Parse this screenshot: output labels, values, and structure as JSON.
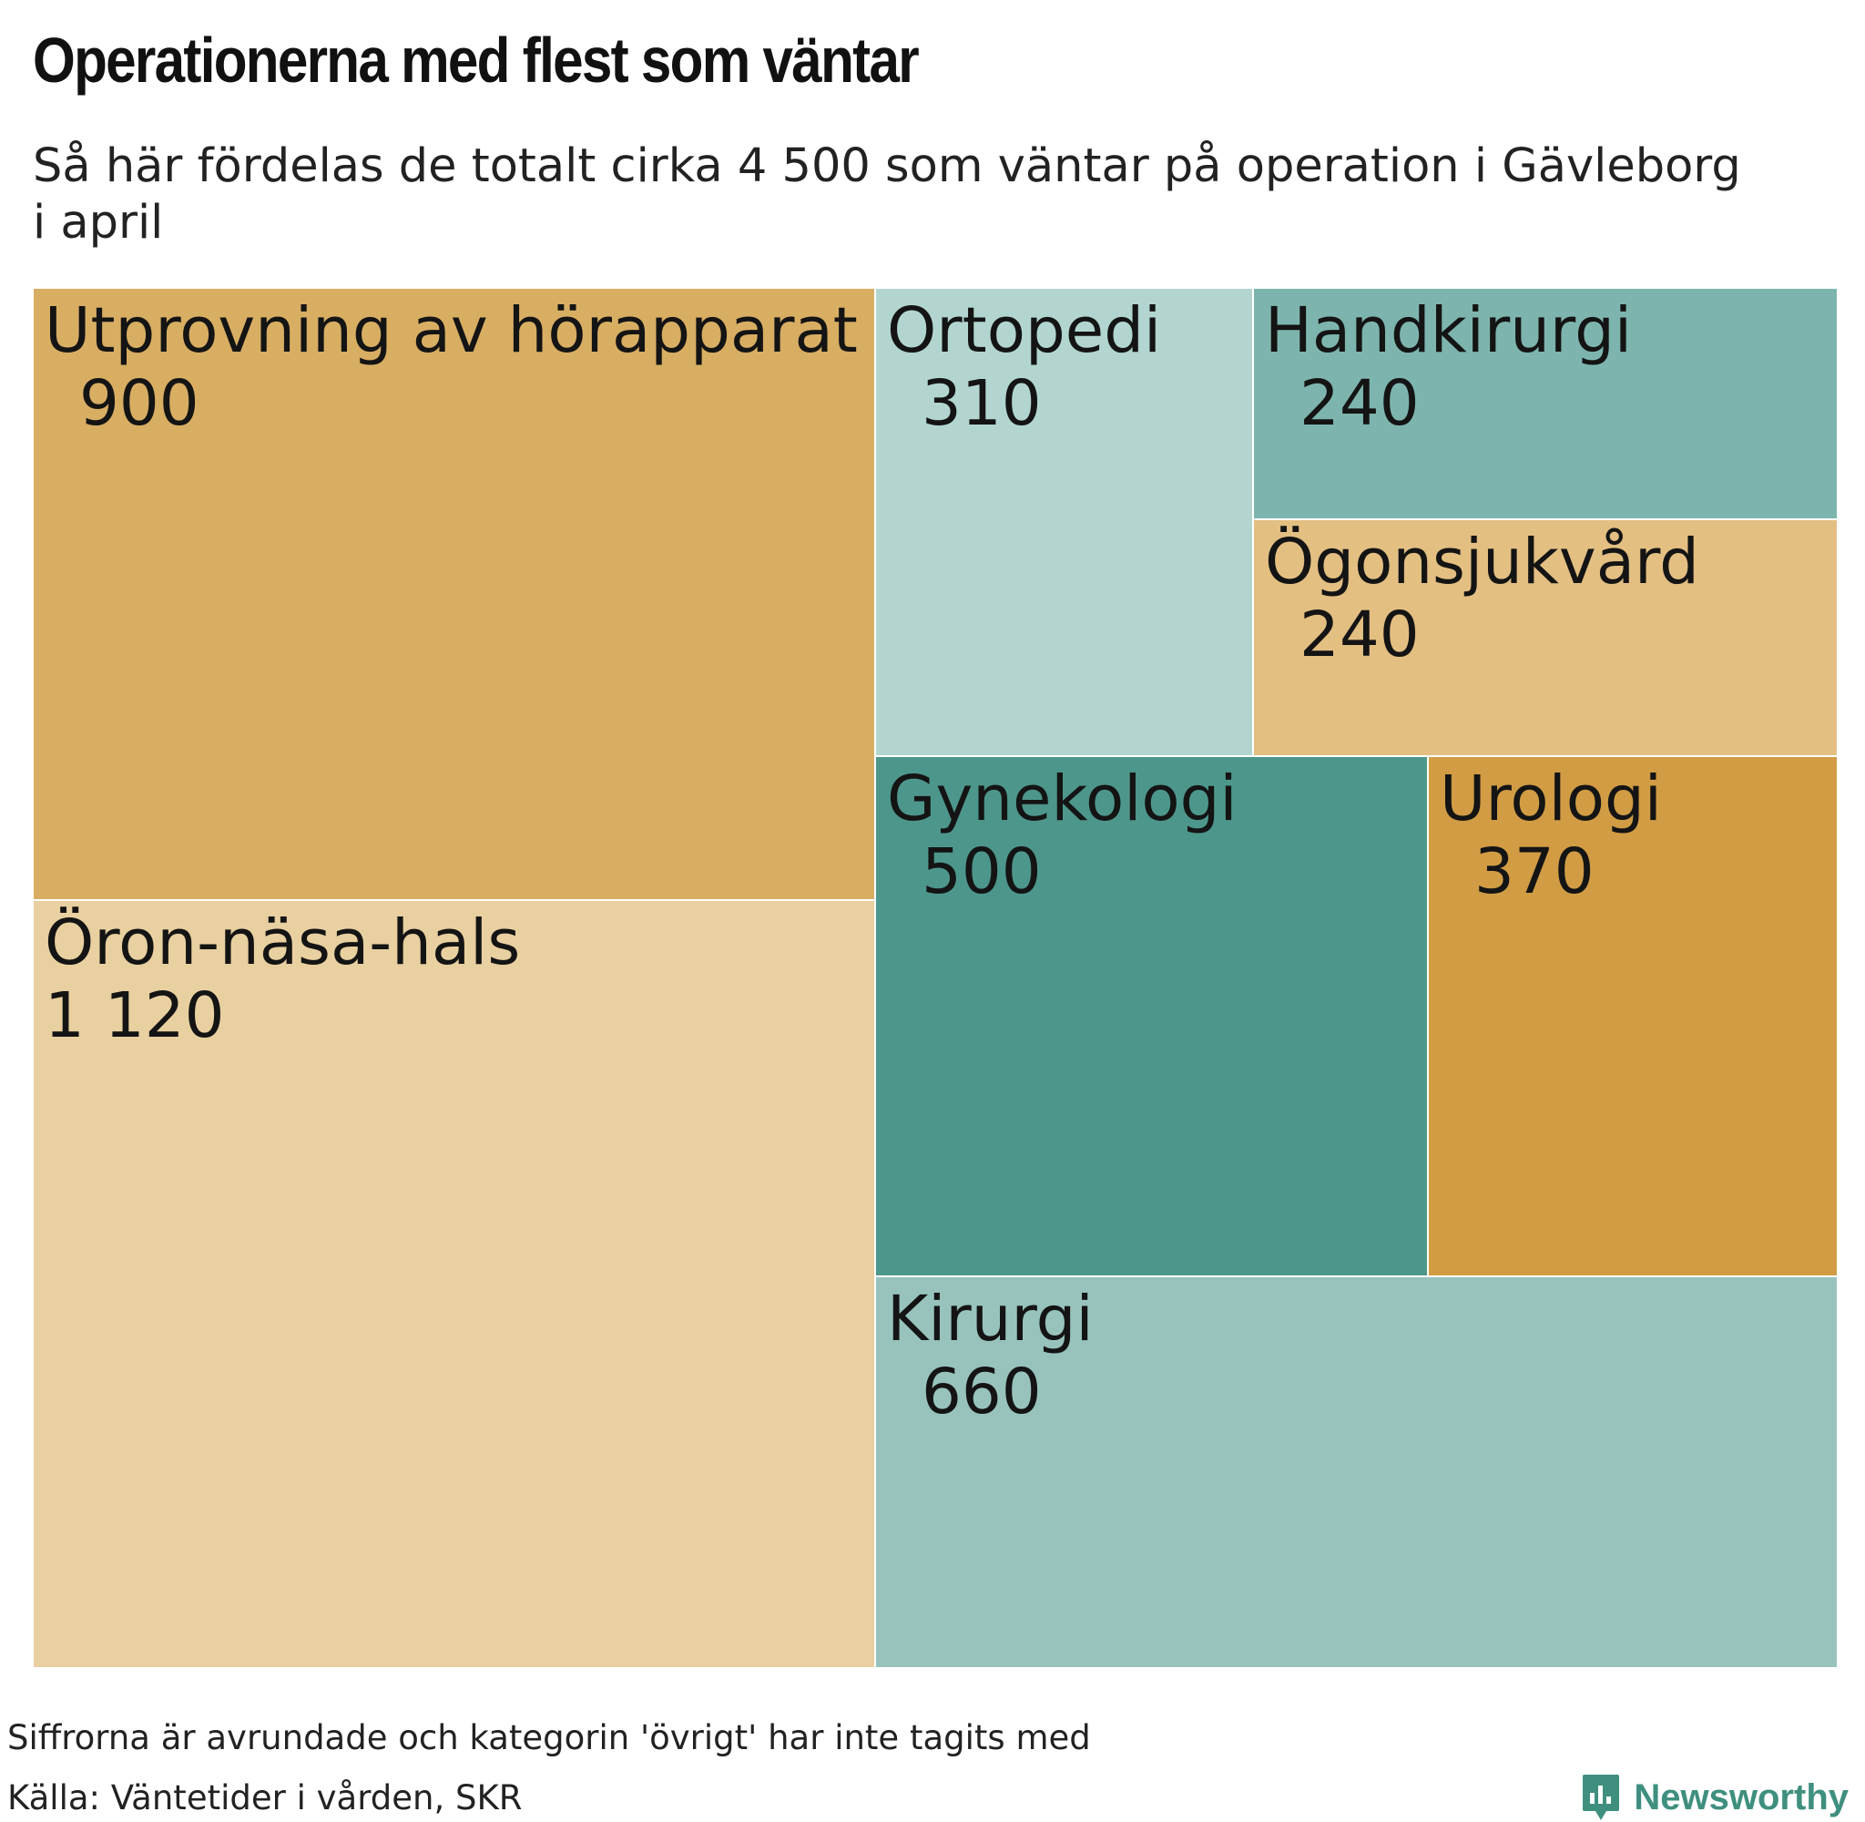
{
  "title": "Operationerna med flest som väntar",
  "subtitle": "Så här fördelas de totalt cirka 4 500 som väntar på operation i Gävleborg i april",
  "note": "Siffrorna är avrundade och kategorin 'övrigt' har inte tagits med",
  "source": "Källa: Väntetider i vården, SKR",
  "brand": "Newsworthy",
  "brand_color": "#3f8f7f",
  "chart_data": {
    "type": "treemap",
    "title": "Operationerna med flest som väntar",
    "subtitle": "Så här fördelas de totalt cirka 4 500 som väntar på operation i Gävleborg i april",
    "series": [
      {
        "name": "Utprovning av hörapparat",
        "value": 900,
        "label": "900",
        "color": "#d8ae63"
      },
      {
        "name": "Öron-näsa-hals",
        "value": 1120,
        "label": "1 120",
        "color": "#e8d0a0"
      },
      {
        "name": "Ortopedi",
        "value": 310,
        "label": "310",
        "color": "#b2d6cf"
      },
      {
        "name": "Handkirurgi",
        "value": 240,
        "label": "240",
        "color": "#7db5ae"
      },
      {
        "name": "Ögonsjukvård",
        "value": 240,
        "label": "240",
        "color": "#e3bf82"
      },
      {
        "name": "Gynekologi",
        "value": 500,
        "label": "500",
        "color": "#4d968b"
      },
      {
        "name": "Urologi",
        "value": 370,
        "label": "370",
        "color": "#d19c44"
      },
      {
        "name": "Kirurgi",
        "value": 660,
        "label": "660",
        "color": "#98c3bd"
      }
    ]
  }
}
